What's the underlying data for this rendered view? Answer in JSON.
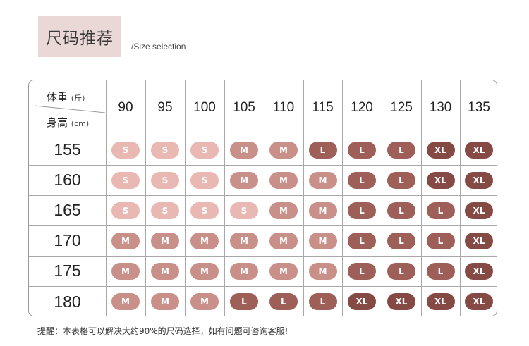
{
  "header": {
    "title": "尺码推荐",
    "subtitle": "/Size selection"
  },
  "table": {
    "weight_label": "体重",
    "weight_unit": "(斤)",
    "height_label": "身高",
    "height_unit": "(cm)",
    "weights": [
      "90",
      "95",
      "100",
      "105",
      "110",
      "115",
      "120",
      "125",
      "130",
      "135"
    ],
    "heights": [
      "155",
      "160",
      "165",
      "170",
      "175",
      "180"
    ],
    "sizes": [
      [
        "S",
        "S",
        "S",
        "M",
        "M",
        "L",
        "L",
        "L",
        "XL",
        "XL"
      ],
      [
        "S",
        "S",
        "S",
        "M",
        "M",
        "M",
        "L",
        "L",
        "XL",
        "XL"
      ],
      [
        "S",
        "S",
        "S",
        "S",
        "M",
        "M",
        "L",
        "L",
        "L",
        "XL"
      ],
      [
        "M",
        "M",
        "M",
        "M",
        "M",
        "M",
        "L",
        "L",
        "L",
        "XL"
      ],
      [
        "M",
        "M",
        "M",
        "M",
        "M",
        "M",
        "L",
        "L",
        "L",
        "XL"
      ],
      [
        "M",
        "M",
        "M",
        "L",
        "L",
        "L",
        "XL",
        "XL",
        "XL",
        "XL"
      ]
    ],
    "size_colors": {
      "S": "#e9b8b3",
      "M": "#c9908a",
      "L": "#9e5f58",
      "XL": "#864a44"
    }
  },
  "footer": {
    "note": "提醒：本表格可以解决大约90%的尺码选择，如有问题可咨询客服!"
  }
}
